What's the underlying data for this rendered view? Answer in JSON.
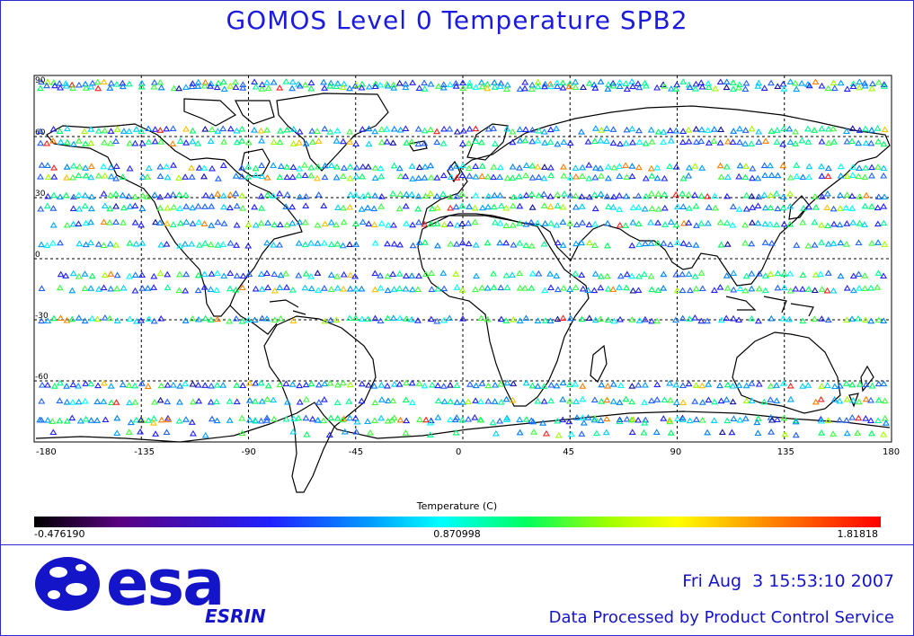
{
  "title": "GOMOS Level 0 Temperature SPB2",
  "map": {
    "lon_ticks": [
      "-180",
      "-135",
      "-90",
      "-45",
      "0",
      "45",
      "90",
      "135",
      "180"
    ],
    "lat_ticks": [
      "90",
      "60",
      "30",
      "0",
      "-30",
      "-60"
    ],
    "grid": true,
    "projection": "equirectangular",
    "marker": "triangle-up",
    "measurement_bands_lat": [
      86,
      84,
      63,
      57,
      45,
      40,
      31,
      25,
      17,
      7,
      -8,
      -15,
      -30,
      -62,
      -70,
      -79
    ],
    "sparse_band_lat": [
      -80,
      -86
    ]
  },
  "colorbar": {
    "label": "Temperature (C)",
    "min_label": "-0.476190",
    "mid_label": "0.870998",
    "max_label": "1.81818",
    "colors": [
      "#000000",
      "#5a0080",
      "#2020ff",
      "#00a0ff",
      "#00ffff",
      "#00ff60",
      "#a0ff00",
      "#ffff00",
      "#ff9000",
      "#ff0000"
    ]
  },
  "footer": {
    "logo_text": "esa",
    "logo_subtext": "ESRIN",
    "timestamp": "Fri Aug  3 15:53:10 2007",
    "service": "Data Processed by Product Control Service"
  },
  "colors": {
    "frame": "#2a2ad8",
    "title": "#1a1ae0",
    "brand": "#1414c8"
  }
}
